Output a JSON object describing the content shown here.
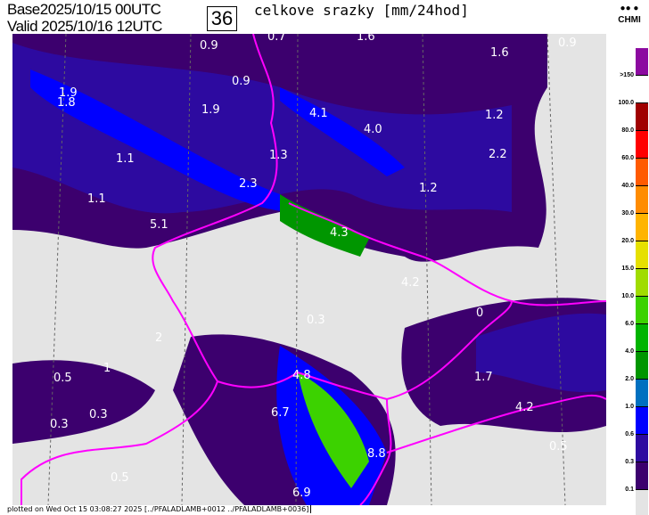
{
  "header": {
    "base_label": "Base",
    "base_value": "2025/10/15 00UTC",
    "valid_label": "Valid",
    "valid_value": "2025/10/16 12UTC",
    "forecast_hour": "36",
    "title": "celkove srazky [mm/24hod]",
    "logo_text": "CHMI"
  },
  "map_labels": [
    "0.7",
    "1.6",
    "0.9",
    "0.9",
    "1.6",
    "0.9",
    "1.9",
    "4.1",
    "1.2",
    "1.8",
    "1.9",
    "4.0",
    "2.2",
    "1.1",
    "1.3",
    "1.1",
    "2.3",
    "1.2",
    "5.1",
    "4.3",
    "4.2",
    "0.3",
    "0",
    "2",
    "1.7",
    "1",
    "0.5",
    "4.8",
    "0.3",
    "6.7",
    "4.2",
    "0.3",
    "8.8",
    "0.5",
    "0.5",
    "6.9"
  ],
  "legend": {
    "labels": [
      ">150",
      "100.0",
      "80.0",
      "60.0",
      "40.0",
      "30.0",
      "20.0",
      "15.0",
      "10.0",
      "6.0",
      "4.0",
      "2.0",
      "1.0",
      "0.6",
      "0.3",
      "0.1"
    ],
    "colors": [
      "#8c0aa0",
      "#ffffff",
      "#a00000",
      "#ff0000",
      "#ff5a00",
      "#ff8c00",
      "#ffb400",
      "#e6e000",
      "#a0dc00",
      "#3cd200",
      "#00b400",
      "#009600",
      "#0070c0",
      "#0000ff",
      "#2d0aa0",
      "#3c006e",
      "#e4e4e4"
    ]
  },
  "footer": "plotted on Wed Oct 15 03:08:27 2025 [../PFALADLAMB+0012 ../PFALADLAMB+0036]"
}
